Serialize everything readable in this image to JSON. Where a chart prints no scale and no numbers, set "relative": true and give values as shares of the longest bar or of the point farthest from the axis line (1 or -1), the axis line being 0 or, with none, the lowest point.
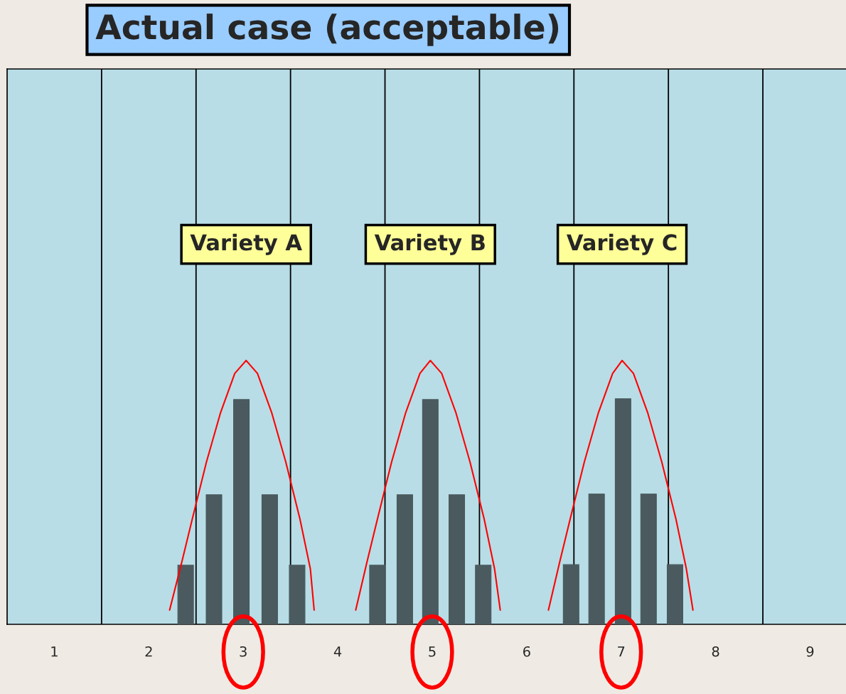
{
  "chart_data": {
    "type": "bar",
    "title": "Actual case (acceptable)",
    "relative": true,
    "annotations": [
      "Variety A",
      "Variety B",
      "Variety C"
    ],
    "xlim": [
      0.5,
      9.38
    ],
    "xticks": [
      1,
      2,
      3,
      4,
      5,
      6,
      7,
      8,
      9
    ],
    "ref_lines": [
      {
        "axis": "x",
        "value": 1.5,
        "color": "#000000"
      },
      {
        "axis": "x",
        "value": 2.5,
        "color": "#000000"
      },
      {
        "axis": "x",
        "value": 3.5,
        "color": "#000000"
      },
      {
        "axis": "x",
        "value": 4.5,
        "color": "#000000"
      },
      {
        "axis": "x",
        "value": 5.5,
        "color": "#000000"
      },
      {
        "axis": "x",
        "value": 6.5,
        "color": "#000000"
      },
      {
        "axis": "x",
        "value": 7.5,
        "color": "#000000"
      },
      {
        "axis": "x",
        "value": 8.5,
        "color": "#000000"
      }
    ],
    "series": [
      {
        "color": "#4a5a5e",
        "x": [
          2.39,
          2.69,
          2.98,
          3.28,
          3.57
        ],
        "values": [
          0.224,
          0.491,
          0.852,
          0.491,
          0.224
        ]
      },
      {
        "color": "#4a5a5e",
        "x": [
          4.42,
          4.71,
          4.98,
          5.26,
          5.54
        ],
        "values": [
          0.224,
          0.491,
          0.852,
          0.491,
          0.224
        ]
      },
      {
        "color": "#4a5a5e",
        "x": [
          6.47,
          6.74,
          7.02,
          7.29,
          7.57
        ],
        "values": [
          0.226,
          0.494,
          0.855,
          0.494,
          0.226
        ]
      },
      {
        "type": "line",
        "color": "#ff0000",
        "x": [
          2.22,
          2.35,
          2.46,
          2.61,
          2.76,
          2.91,
          3.03,
          3.15,
          3.3,
          3.45,
          3.6,
          3.71,
          3.75
        ],
        "values": [
          0.054,
          0.237,
          0.399,
          0.615,
          0.803,
          0.951,
          1,
          0.951,
          0.803,
          0.615,
          0.399,
          0.21,
          0.054
        ]
      },
      {
        "type": "line",
        "color": "#ff0000",
        "x": [
          4.19,
          4.31,
          4.42,
          4.57,
          4.72,
          4.87,
          4.98,
          5.1,
          5.25,
          5.4,
          5.55,
          5.66,
          5.72
        ],
        "values": [
          0.054,
          0.237,
          0.399,
          0.615,
          0.803,
          0.951,
          1,
          0.951,
          0.803,
          0.615,
          0.399,
          0.21,
          0.054
        ]
      },
      {
        "type": "line",
        "color": "#ff0000",
        "x": [
          6.23,
          6.35,
          6.46,
          6.61,
          6.76,
          6.91,
          7.01,
          7.13,
          7.28,
          7.43,
          7.58,
          7.69,
          7.76
        ],
        "values": [
          0.054,
          0.237,
          0.399,
          0.615,
          0.803,
          0.951,
          1,
          0.951,
          0.803,
          0.615,
          0.399,
          0.21,
          0.054
        ]
      }
    ]
  }
}
